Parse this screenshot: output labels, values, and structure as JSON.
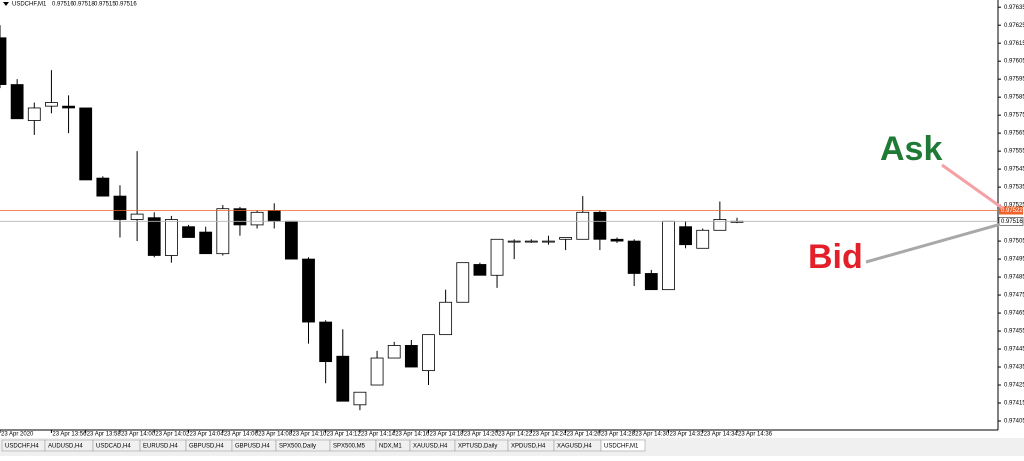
{
  "chart_data": {
    "type": "candlestick",
    "title": "USDCHF,M1",
    "categories": [
      "23 Apr 2020",
      null,
      null,
      "23 Apr 13:56",
      null,
      "23 Apr 13:58",
      null,
      "23 Apr 14:00",
      null,
      "23 Apr 14:02",
      null,
      "23 Apr 14:04",
      null,
      "23 Apr 14:06",
      null,
      "23 Apr 14:08",
      null,
      "23 Apr 14:10",
      null,
      "23 Apr 14:12",
      null,
      "23 Apr 14:14",
      null,
      "23 Apr 14:16",
      null,
      "23 Apr 14:18",
      null,
      "23 Apr 14:20",
      null,
      "23 Apr 14:22",
      null,
      "23 Apr 14:24",
      null,
      "23 Apr 14:26",
      null,
      "23 Apr 14:28",
      null,
      "23 Apr 14:30",
      null,
      "23 Apr 14:32",
      null,
      "23 Apr 14:34",
      null,
      "23 Apr 14:36"
    ],
    "open": [
      0.97618,
      0.97592,
      0.97572,
      0.9758,
      0.9758,
      0.97579,
      0.9754,
      0.9753,
      0.97517,
      0.97518,
      0.97497,
      0.97513,
      0.9751,
      0.97498,
      0.97523,
      0.97514,
      0.97522,
      0.97516,
      0.97495,
      0.9746,
      0.97441,
      0.97414,
      0.97425,
      0.9744,
      0.97447,
      0.97433,
      0.97453,
      0.97471,
      0.97492,
      0.97486,
      0.97505,
      0.97505,
      0.97505,
      0.97506,
      0.97506,
      0.97521,
      0.97506,
      0.97505,
      0.97487,
      0.97478,
      0.97513,
      0.97501,
      0.97511,
      0.97516
    ],
    "high": [
      0.97625,
      0.97595,
      0.97582,
      0.976,
      0.97586,
      0.97579,
      0.97541,
      0.97536,
      0.97555,
      0.97521,
      0.97519,
      0.97514,
      0.97513,
      0.97525,
      0.97524,
      0.97522,
      0.97526,
      0.97516,
      0.97496,
      0.97461,
      0.97456,
      0.97421,
      0.97444,
      0.97449,
      0.9745,
      0.97453,
      0.97478,
      0.97493,
      0.97493,
      0.97506,
      0.97506,
      0.97506,
      0.97508,
      0.97507,
      0.9753,
      0.97522,
      0.97507,
      0.97506,
      0.97489,
      0.97516,
      0.97516,
      0.97512,
      0.97527,
      0.97518
    ],
    "low": [
      0.9759,
      0.97573,
      0.97564,
      0.97576,
      0.97565,
      0.97539,
      0.9753,
      0.97507,
      0.97505,
      0.97496,
      0.97493,
      0.97507,
      0.97498,
      0.97497,
      0.97508,
      0.97512,
      0.97512,
      0.97495,
      0.97448,
      0.97426,
      0.97416,
      0.97411,
      0.97425,
      0.9744,
      0.97435,
      0.97425,
      0.97453,
      0.97471,
      0.97486,
      0.97479,
      0.97495,
      0.97504,
      0.97503,
      0.975,
      0.97506,
      0.975,
      0.97504,
      0.9748,
      0.97478,
      0.97478,
      0.97501,
      0.97501,
      0.97511,
      0.97515
    ],
    "close": [
      0.97592,
      0.97573,
      0.97579,
      0.97582,
      0.97579,
      0.97539,
      0.9753,
      0.97517,
      0.9752,
      0.97497,
      0.97517,
      0.97507,
      0.97498,
      0.97523,
      0.97514,
      0.97521,
      0.97516,
      0.97495,
      0.9746,
      0.97438,
      0.97416,
      0.97421,
      0.9744,
      0.97447,
      0.97435,
      0.97453,
      0.97471,
      0.97493,
      0.97486,
      0.97506,
      0.97505,
      0.97505,
      0.97505,
      0.97507,
      0.97521,
      0.97506,
      0.97505,
      0.97487,
      0.97478,
      0.97516,
      0.97503,
      0.97511,
      0.97517,
      0.97516
    ],
    "ylim": [
      0.974,
      0.97639
    ],
    "yticks": [
      0.97635,
      0.97625,
      0.97615,
      0.97605,
      0.97595,
      0.97585,
      0.97575,
      0.97565,
      0.97555,
      0.97545,
      0.97535,
      0.97525,
      0.97505,
      0.97495,
      0.97485,
      0.97475,
      0.97465,
      0.97455,
      0.97445,
      0.97435,
      0.97425,
      0.97415,
      0.97405
    ],
    "ask": 0.97522,
    "bid": 0.97516,
    "ask_color": "#f0622a",
    "bid_color": "#b4b4b4",
    "annotations": [
      {
        "text": "Ask",
        "color": "#1f7a35"
      },
      {
        "text": "Bid",
        "color": "#e3202a"
      }
    ]
  },
  "tabs": [
    "USDCHF,H4",
    "AUDUSD,H4",
    "USDCAD,H4",
    "EURUSD,H4",
    "GBPUSD,H4",
    "GBPUSD,H4",
    "SPX500,Daily",
    "SPX500,M5",
    "NDX,M1",
    "XAUUSD,H4",
    "XPTUSD,Daily",
    "XPDUSD,H4",
    "XAGUSD,H4",
    "USDCHF,M1"
  ],
  "active_tab": 13
}
